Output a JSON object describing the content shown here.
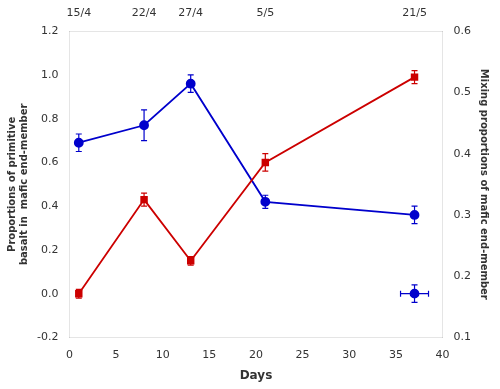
{
  "chart_data": {
    "type": "scatter",
    "xlabel": "Days",
    "ylabel": "Proportions of primitive\nbasalt in  mafic end-member",
    "y2label": "Mixing proportions of mafic end-member",
    "xlim": [
      0,
      40
    ],
    "xticks": [
      0,
      5,
      10,
      15,
      20,
      25,
      30,
      35,
      40
    ],
    "x2lim": [
      0,
      40
    ],
    "x2ticks": [
      {
        "value": 1,
        "label": "15/4"
      },
      {
        "value": 8,
        "label": "22/4"
      },
      {
        "value": 13,
        "label": "27/4"
      },
      {
        "value": 21,
        "label": "5/5"
      },
      {
        "value": 37,
        "label": "21/5"
      }
    ],
    "ylim": [
      -0.2,
      1.2
    ],
    "yticks": [
      -0.2,
      {
        "value": 0.0,
        "label": "0.0"
      },
      0.2,
      0.4,
      0.6,
      0.8,
      {
        "value": 1.0,
        "label": "1.0"
      },
      1.2
    ],
    "y2lim": [
      0.1,
      0.6
    ],
    "y2ticks": [
      0.1,
      0.2,
      0.3,
      0.4,
      0.5,
      0.6
    ],
    "grid": false,
    "series": [
      {
        "color": "#cc0000",
        "marker": "square",
        "line_style": "solid",
        "x": [
          1,
          8,
          13,
          21,
          37
        ],
        "values": [
          0.0,
          0.43,
          0.15,
          0.6,
          0.99
        ],
        "yerr_lo": [
          0.02,
          0.03,
          0.02,
          0.04,
          0.03
        ],
        "yerr_hi": [
          0.02,
          0.03,
          0.02,
          0.04,
          0.03
        ]
      },
      {
        "color": "#0000cc",
        "marker": "circle",
        "line_style": "solid",
        "x": [
          1,
          8,
          13,
          21,
          37
        ],
        "values": [
          0.69,
          0.77,
          0.96,
          0.42,
          0.36
        ],
        "yerr_lo": [
          0.04,
          0.07,
          0.04,
          0.03,
          0.04
        ],
        "yerr_hi": [
          0.04,
          0.07,
          0.04,
          0.03,
          0.04
        ]
      },
      {
        "color": "#0000cc",
        "marker": "circle",
        "line_style": "none",
        "x": [
          37
        ],
        "values": [
          0.0
        ],
        "yerr_lo": [
          0.04
        ],
        "yerr_hi": [
          0.04
        ],
        "xerr_lo": [
          1.5
        ],
        "xerr_hi": [
          1.5
        ]
      }
    ]
  }
}
